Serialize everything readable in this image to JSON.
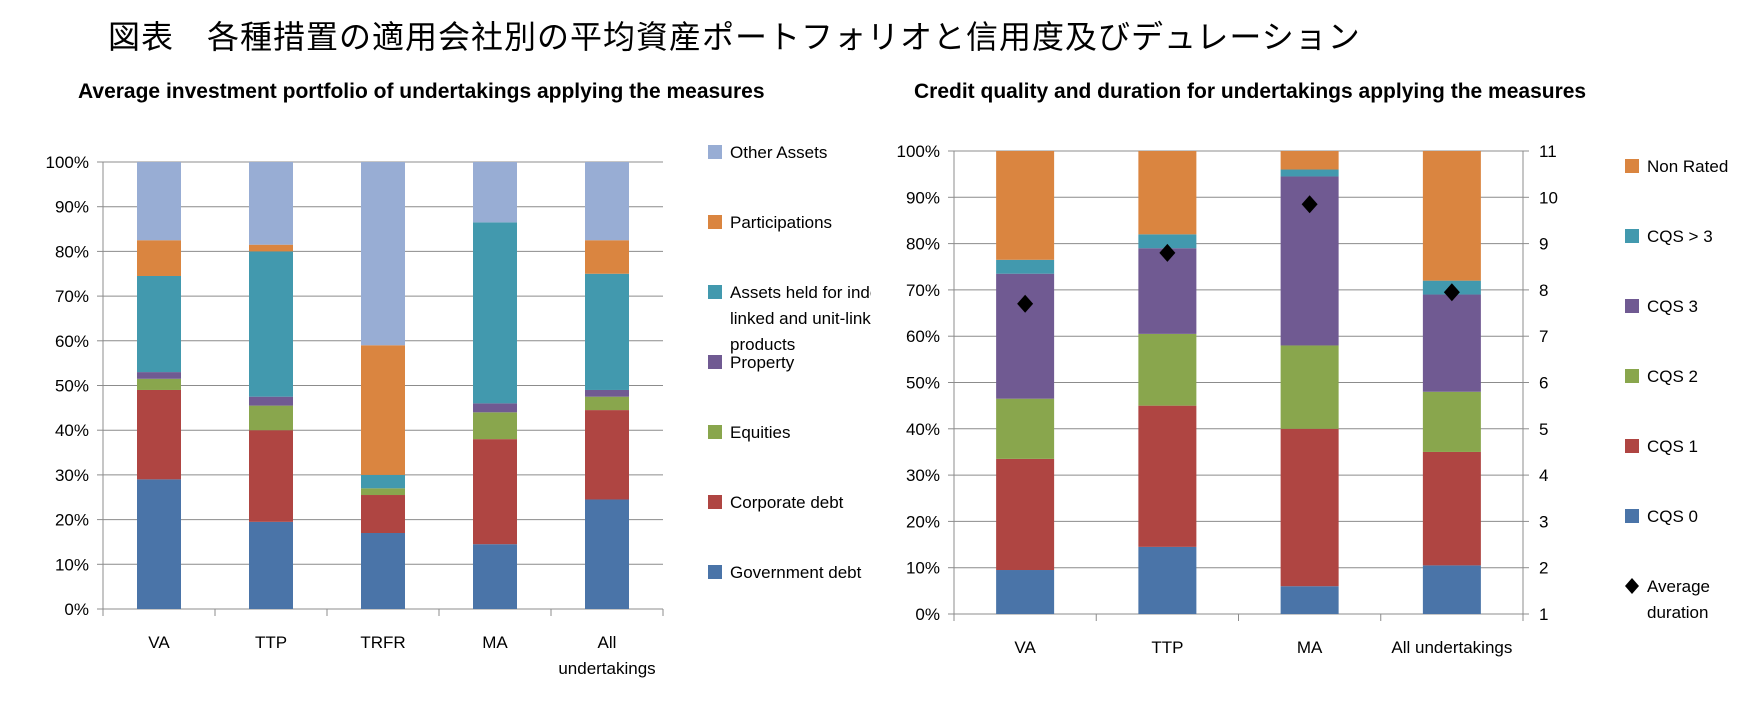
{
  "page_title": "図表　各種措置の適用会社別の平均資産ポートフォリオと信用度及びデュレーション",
  "chart_data": [
    {
      "type": "bar",
      "stacked": true,
      "title": "Average investment portfolio of undertakings applying the measures",
      "categories": [
        "VA",
        "TTP",
        "TRFR",
        "MA",
        "All undertakings"
      ],
      "category_labels": [
        [
          "VA"
        ],
        [
          "TTP"
        ],
        [
          "TRFR"
        ],
        [
          "MA"
        ],
        [
          "All",
          "undertakings"
        ]
      ],
      "ylim": [
        0,
        100
      ],
      "yticks": [
        "0%",
        "10%",
        "20%",
        "30%",
        "40%",
        "50%",
        "60%",
        "70%",
        "80%",
        "90%",
        "100%"
      ],
      "grid": true,
      "legend_position": "right",
      "series": [
        {
          "name": "Government debt",
          "color": "#4A74A8",
          "values": [
            29,
            19.5,
            17,
            14.5,
            24.5
          ]
        },
        {
          "name": "Corporate debt",
          "color": "#AF4542",
          "values": [
            20,
            20.5,
            8.5,
            23.5,
            20
          ]
        },
        {
          "name": "Equities",
          "color": "#89A64D",
          "values": [
            2.5,
            5.5,
            1.5,
            6,
            3
          ]
        },
        {
          "name": "Property",
          "color": "#705A92",
          "values": [
            1.5,
            2,
            0,
            2,
            1.5
          ]
        },
        {
          "name": "Assets held for index-linked and unit-linked products",
          "color": "#4299AE",
          "values": [
            21.5,
            32.5,
            3,
            40.5,
            26
          ]
        },
        {
          "name": "Participations",
          "color": "#DA8540",
          "values": [
            8,
            1.5,
            29,
            0,
            7.5
          ]
        },
        {
          "name": "Other Assets",
          "color": "#98ADD4",
          "values": [
            17.5,
            18.5,
            41,
            13.5,
            17.5
          ]
        }
      ],
      "legend_labels": [
        [
          "Other Assets"
        ],
        [
          "Participations"
        ],
        [
          "Assets held for inde",
          "linked and unit-linke",
          "products"
        ],
        [
          "Property"
        ],
        [
          "Equities"
        ],
        [
          "Corporate debt"
        ],
        [
          "Government debt"
        ]
      ]
    },
    {
      "type": "bar",
      "stacked": true,
      "title": "Credit quality and duration for undertakings applying the measures",
      "categories": [
        "VA",
        "TTP",
        "MA",
        "All undertakings"
      ],
      "ylim": [
        0,
        100
      ],
      "yticks": [
        "0%",
        "10%",
        "20%",
        "30%",
        "40%",
        "50%",
        "60%",
        "70%",
        "80%",
        "90%",
        "100%"
      ],
      "y2lim": [
        1,
        11
      ],
      "y2ticks": [
        "1",
        "2",
        "3",
        "4",
        "5",
        "6",
        "7",
        "8",
        "9",
        "10",
        "11"
      ],
      "grid": true,
      "legend_position": "right",
      "series": [
        {
          "name": "CQS 0",
          "color": "#4A74A8",
          "values": [
            9.5,
            14.5,
            6,
            10.5
          ]
        },
        {
          "name": "CQS 1",
          "color": "#AF4542",
          "values": [
            24,
            30.5,
            34,
            24.5
          ]
        },
        {
          "name": "CQS 2",
          "color": "#89A64D",
          "values": [
            13,
            15.5,
            18,
            13
          ]
        },
        {
          "name": "CQS 3",
          "color": "#705A92",
          "values": [
            27,
            18.5,
            36.5,
            21
          ]
        },
        {
          "name": "CQS > 3",
          "color": "#4299AE",
          "values": [
            3,
            3,
            1.5,
            3
          ]
        },
        {
          "name": "Non Rated",
          "color": "#DA8540",
          "values": [
            23.5,
            18,
            4,
            28
          ]
        }
      ],
      "line_series": {
        "name": "Average duration",
        "marker": "diamond",
        "axis": "y2",
        "values": [
          7.7,
          8.8,
          9.85,
          7.95
        ]
      },
      "legend_labels": [
        [
          "Non Rated"
        ],
        [
          "CQS > 3"
        ],
        [
          "CQS 3"
        ],
        [
          "CQS 2"
        ],
        [
          "CQS 1"
        ],
        [
          "CQS 0"
        ],
        [
          "Average",
          "duration"
        ]
      ]
    }
  ]
}
